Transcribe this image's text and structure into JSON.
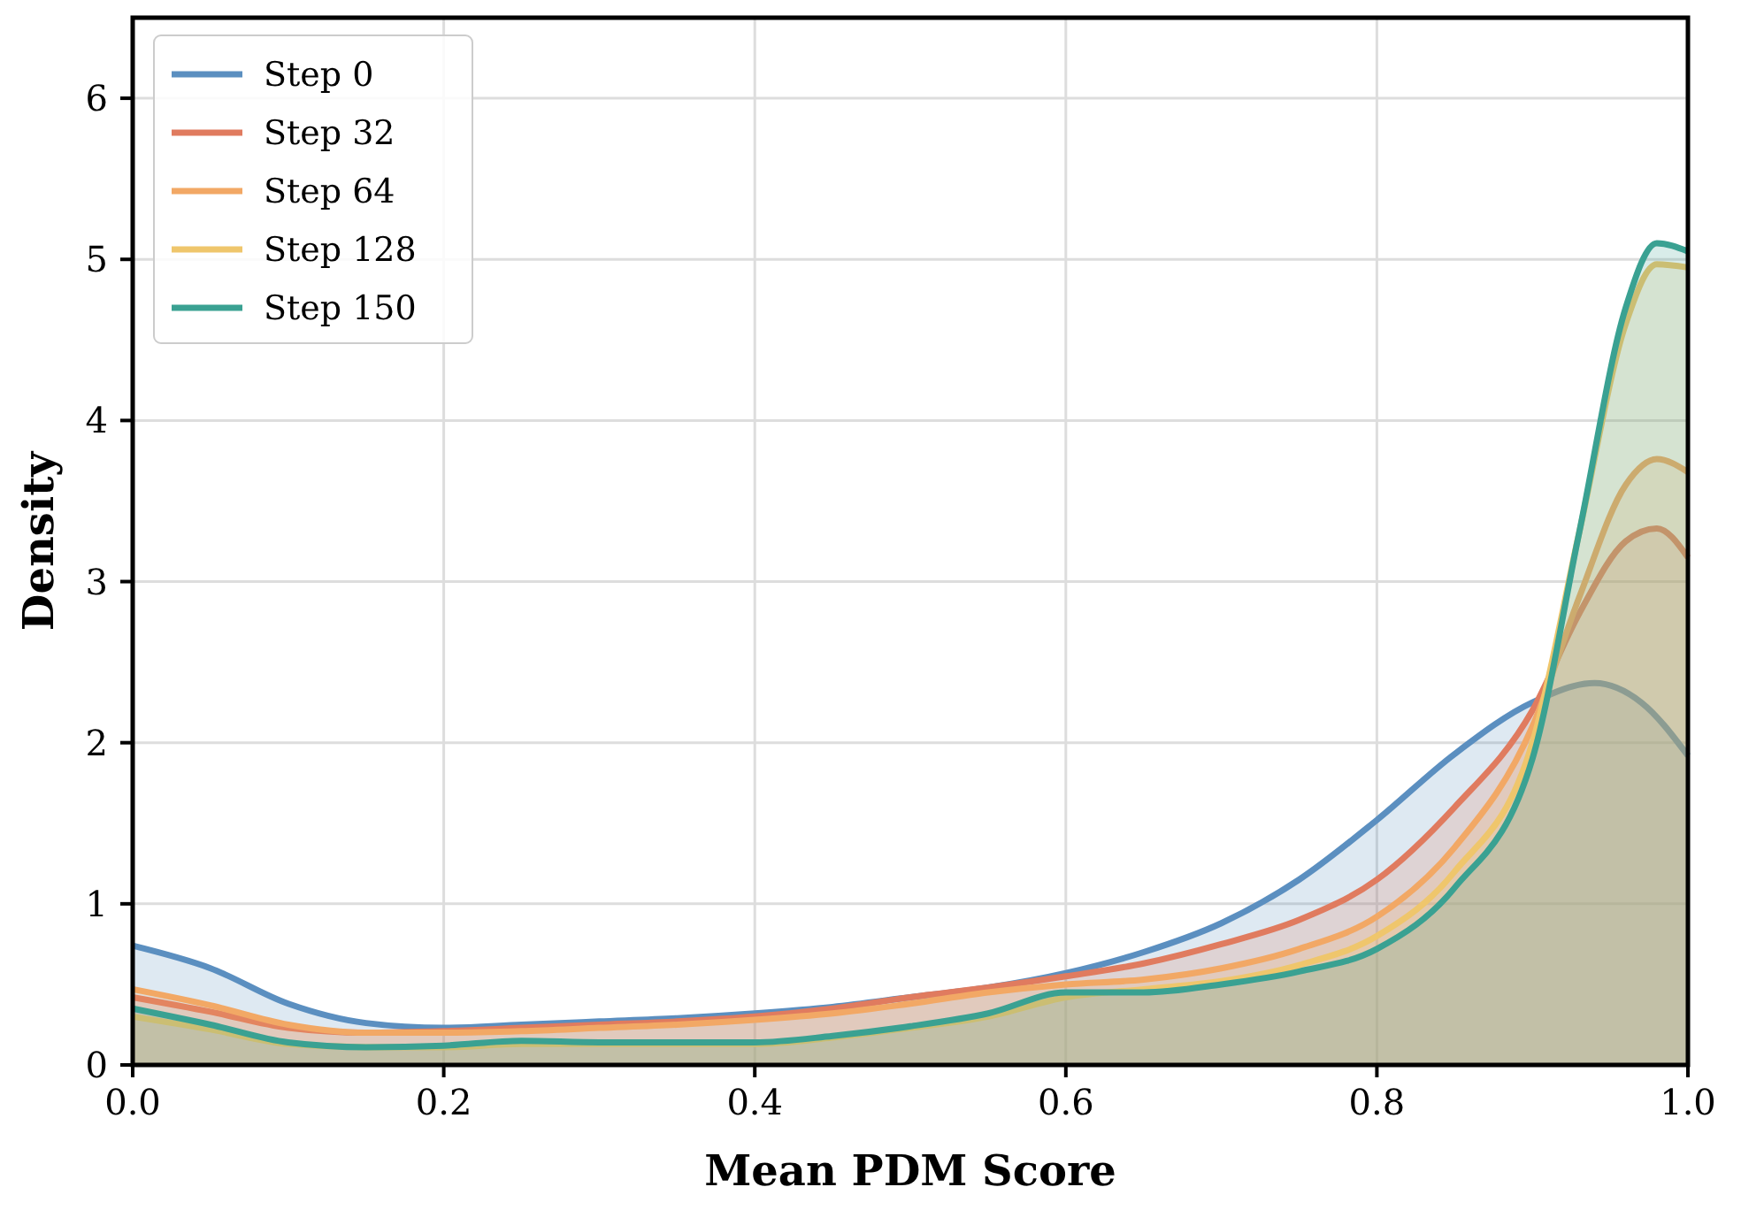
{
  "chart_data": {
    "type": "area",
    "xlabel": "Mean PDM Score",
    "ylabel": "Density",
    "xlim": [
      0,
      1
    ],
    "ylim": [
      0,
      6.5
    ],
    "xticks": [
      {
        "value": 0,
        "label": "0.0"
      },
      0.2,
      0.4,
      0.6,
      0.8,
      {
        "value": 1,
        "label": "1.0"
      }
    ],
    "yticks": [
      0,
      1,
      2,
      3,
      4,
      5,
      6
    ],
    "grid": true,
    "legend": "top left",
    "line_style": "solid",
    "x": [
      0,
      0.05,
      0.1,
      0.15,
      0.2,
      0.25,
      0.3,
      0.35,
      0.4,
      0.45,
      0.5,
      0.55,
      0.6,
      0.65,
      0.7,
      0.75,
      0.8,
      0.85,
      0.9,
      0.93,
      0.96,
      0.98,
      1.0
    ],
    "series": [
      {
        "name": "Step 0",
        "color": "#5b8fc0",
        "x": [
          0,
          0.05,
          0.1,
          0.15,
          0.2,
          0.25,
          0.3,
          0.35,
          0.4,
          0.45,
          0.5,
          0.55,
          0.6,
          0.65,
          0.7,
          0.75,
          0.8,
          0.85,
          0.9,
          0.94,
          0.97,
          1.0
        ],
        "values": [
          0.74,
          0.6,
          0.38,
          0.26,
          0.23,
          0.25,
          0.27,
          0.29,
          0.32,
          0.36,
          0.42,
          0.48,
          0.57,
          0.7,
          0.88,
          1.15,
          1.52,
          1.93,
          2.25,
          2.37,
          2.25,
          1.92
        ]
      },
      {
        "name": "Step 32",
        "color": "#e07b5f",
        "values": [
          0.42,
          0.33,
          0.23,
          0.2,
          0.21,
          0.23,
          0.25,
          0.27,
          0.3,
          0.35,
          0.42,
          0.48,
          0.55,
          0.63,
          0.75,
          0.9,
          1.15,
          1.6,
          2.2,
          2.8,
          3.25,
          3.33,
          3.15
        ]
      },
      {
        "name": "Step 64",
        "color": "#f2a865",
        "values": [
          0.47,
          0.37,
          0.25,
          0.2,
          0.2,
          0.21,
          0.23,
          0.25,
          0.28,
          0.32,
          0.38,
          0.45,
          0.5,
          0.53,
          0.6,
          0.72,
          0.92,
          1.35,
          2.1,
          2.9,
          3.6,
          3.76,
          3.68
        ]
      },
      {
        "name": "Step 128",
        "color": "#efc66c",
        "values": [
          0.3,
          0.22,
          0.13,
          0.11,
          0.11,
          0.13,
          0.13,
          0.13,
          0.13,
          0.17,
          0.23,
          0.3,
          0.42,
          0.47,
          0.52,
          0.62,
          0.8,
          1.2,
          2.0,
          3.3,
          4.6,
          4.97,
          4.95
        ]
      },
      {
        "name": "Step 150",
        "color": "#3aa192",
        "values": [
          0.35,
          0.25,
          0.14,
          0.11,
          0.12,
          0.15,
          0.14,
          0.14,
          0.14,
          0.18,
          0.24,
          0.32,
          0.45,
          0.45,
          0.5,
          0.58,
          0.72,
          1.1,
          1.9,
          3.3,
          4.7,
          5.1,
          5.05
        ]
      }
    ]
  }
}
